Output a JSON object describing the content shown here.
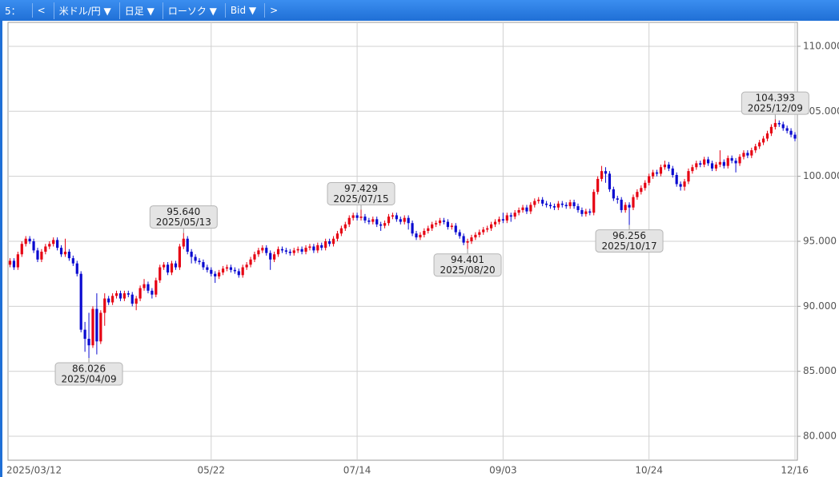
{
  "toolbar": {
    "period": "5：",
    "prev": "<",
    "symbol": "米ドル/円 ▼",
    "interval": "日足 ▼",
    "style": "ローソク ▼",
    "price": "Bid ▼",
    "next": ">"
  },
  "chart_data": {
    "type": "candlestick",
    "up_color": "#e60012",
    "down_color": "#0a0ad0",
    "grid": true,
    "ylim": [
      78.16,
      111.84
    ],
    "yticks": [
      {
        "value": 80,
        "label": "80.000"
      },
      {
        "value": 85,
        "label": "85.000"
      },
      {
        "value": 90,
        "label": "90.000"
      },
      {
        "value": 95,
        "label": "95.000"
      },
      {
        "value": 100,
        "label": "100.000"
      },
      {
        "value": 105,
        "label": "105.000"
      },
      {
        "value": 110,
        "label": "110.000"
      }
    ],
    "categories": [
      "2025/03/12",
      null,
      null,
      null,
      null,
      null,
      null,
      null,
      null,
      null,
      null,
      null,
      null,
      null,
      null,
      null,
      null,
      null,
      null,
      null,
      null,
      null,
      null,
      null,
      null,
      null,
      null,
      null,
      null,
      null,
      null,
      null,
      null,
      null,
      null,
      null,
      null,
      null,
      null,
      null,
      null,
      null,
      null,
      null,
      null,
      null,
      null,
      null,
      null,
      null,
      null,
      "05/22",
      null,
      null,
      null,
      null,
      null,
      null,
      null,
      null,
      null,
      null,
      null,
      null,
      null,
      null,
      null,
      null,
      null,
      null,
      null,
      null,
      null,
      null,
      null,
      null,
      null,
      null,
      null,
      null,
      null,
      null,
      null,
      null,
      null,
      null,
      null,
      null,
      "07/14",
      null,
      null,
      null,
      null,
      null,
      null,
      null,
      null,
      null,
      null,
      null,
      null,
      null,
      null,
      null,
      null,
      null,
      null,
      null,
      null,
      null,
      null,
      null,
      null,
      null,
      null,
      null,
      null,
      null,
      null,
      null,
      null,
      null,
      null,
      null,
      null,
      "09/03",
      null,
      null,
      null,
      null,
      null,
      null,
      null,
      null,
      null,
      null,
      null,
      null,
      null,
      null,
      null,
      null,
      null,
      null,
      null,
      null,
      null,
      null,
      null,
      null,
      null,
      null,
      null,
      null,
      null,
      null,
      null,
      null,
      null,
      null,
      null,
      null,
      "10/24",
      null,
      null,
      null,
      null,
      null,
      null,
      null,
      null,
      null,
      null,
      null,
      null,
      null,
      null,
      null,
      null,
      null,
      null,
      null,
      null,
      null,
      null,
      null,
      null,
      null,
      null,
      null,
      null,
      null,
      null,
      null,
      null,
      null,
      null,
      null,
      null,
      "12/16"
    ],
    "ohlc": [
      [
        93.2,
        93.7,
        93.0,
        93.5
      ],
      [
        93.5,
        93.7,
        92.8,
        93.0
      ],
      [
        93.0,
        94.2,
        92.8,
        94.0
      ],
      [
        94.0,
        95.0,
        93.8,
        94.8
      ],
      [
        94.8,
        95.4,
        94.6,
        95.2
      ],
      [
        95.2,
        95.4,
        94.8,
        95.0
      ],
      [
        95.0,
        95.2,
        94.1,
        94.3
      ],
      [
        94.3,
        94.5,
        93.4,
        93.6
      ],
      [
        93.6,
        94.4,
        93.4,
        94.2
      ],
      [
        94.2,
        94.8,
        94.0,
        94.6
      ],
      [
        94.6,
        95.0,
        94.4,
        94.8
      ],
      [
        94.8,
        95.3,
        94.6,
        95.1
      ],
      [
        95.1,
        95.3,
        94.3,
        94.5
      ],
      [
        94.5,
        94.7,
        93.8,
        94.0
      ],
      [
        94.0,
        95.2,
        93.8,
        94.2
      ],
      [
        94.2,
        94.4,
        93.5,
        93.7
      ],
      [
        93.7,
        93.9,
        93.1,
        93.3
      ],
      [
        93.3,
        93.5,
        92.3,
        92.5
      ],
      [
        92.5,
        92.7,
        88.0,
        88.2
      ],
      [
        88.2,
        88.8,
        86.5,
        87.5
      ],
      [
        87.5,
        89.5,
        86.026,
        87.0
      ],
      [
        87.0,
        90.0,
        86.8,
        89.8
      ],
      [
        89.8,
        91.0,
        86.3,
        87.3
      ],
      [
        87.3,
        89.7,
        87.1,
        89.5
      ],
      [
        89.5,
        91.0,
        88.5,
        90.6
      ],
      [
        90.6,
        90.8,
        90.1,
        90.3
      ],
      [
        90.3,
        91.0,
        90.1,
        90.8
      ],
      [
        90.8,
        91.2,
        90.6,
        91.0
      ],
      [
        91.0,
        91.2,
        90.4,
        90.6
      ],
      [
        90.6,
        91.2,
        90.4,
        91.0
      ],
      [
        91.0,
        91.2,
        90.7,
        90.9
      ],
      [
        90.9,
        91.1,
        90.0,
        90.2
      ],
      [
        90.2,
        90.8,
        89.7,
        90.6
      ],
      [
        90.6,
        91.6,
        90.4,
        91.4
      ],
      [
        91.4,
        92.1,
        91.2,
        91.7
      ],
      [
        91.7,
        91.9,
        91.0,
        91.2
      ],
      [
        91.2,
        91.4,
        90.6,
        90.9
      ],
      [
        90.9,
        92.2,
        90.7,
        92.0
      ],
      [
        92.0,
        93.2,
        91.8,
        93.0
      ],
      [
        93.0,
        93.4,
        92.8,
        93.2
      ],
      [
        93.2,
        93.4,
        92.4,
        92.6
      ],
      [
        92.6,
        93.5,
        92.4,
        93.3
      ],
      [
        93.3,
        93.5,
        92.8,
        93.0
      ],
      [
        93.0,
        94.8,
        92.8,
        94.6
      ],
      [
        94.6,
        95.64,
        94.4,
        95.2
      ],
      [
        95.2,
        95.4,
        94.0,
        94.2
      ],
      [
        94.2,
        94.4,
        93.3,
        93.8
      ],
      [
        93.8,
        94.0,
        93.3,
        93.5
      ],
      [
        93.5,
        93.7,
        93.2,
        93.4
      ],
      [
        93.4,
        93.6,
        92.8,
        93.0
      ],
      [
        93.0,
        93.2,
        92.6,
        92.8
      ],
      [
        92.8,
        93.0,
        92.3,
        92.5
      ],
      [
        92.5,
        92.7,
        91.8,
        92.3
      ],
      [
        92.3,
        92.8,
        92.1,
        92.6
      ],
      [
        92.6,
        93.1,
        92.4,
        92.9
      ],
      [
        92.9,
        93.2,
        92.7,
        93.0
      ],
      [
        93.0,
        93.2,
        92.6,
        92.8
      ],
      [
        92.8,
        93.0,
        92.5,
        92.7
      ],
      [
        92.7,
        92.9,
        92.2,
        92.4
      ],
      [
        92.4,
        93.2,
        92.2,
        93.0
      ],
      [
        93.0,
        93.4,
        92.8,
        93.2
      ],
      [
        93.2,
        93.8,
        93.0,
        93.6
      ],
      [
        93.6,
        94.2,
        93.4,
        94.0
      ],
      [
        94.0,
        94.5,
        93.8,
        94.3
      ],
      [
        94.3,
        94.7,
        94.1,
        94.5
      ],
      [
        94.5,
        94.7,
        93.9,
        94.1
      ],
      [
        94.1,
        94.3,
        92.8,
        93.6
      ],
      [
        93.6,
        94.2,
        93.4,
        94.0
      ],
      [
        94.0,
        94.6,
        93.8,
        94.4
      ],
      [
        94.4,
        94.6,
        94.1,
        94.3
      ],
      [
        94.3,
        94.5,
        94.0,
        94.2
      ],
      [
        94.2,
        94.4,
        93.9,
        94.1
      ],
      [
        94.1,
        94.5,
        93.9,
        94.3
      ],
      [
        94.3,
        94.6,
        94.1,
        94.4
      ],
      [
        94.4,
        94.6,
        94.0,
        94.2
      ],
      [
        94.2,
        94.7,
        94.0,
        94.5
      ],
      [
        94.5,
        94.8,
        94.3,
        94.6
      ],
      [
        94.6,
        94.8,
        94.1,
        94.3
      ],
      [
        94.3,
        94.9,
        94.1,
        94.7
      ],
      [
        94.7,
        94.9,
        94.3,
        94.5
      ],
      [
        94.5,
        95.2,
        94.3,
        95.0
      ],
      [
        95.0,
        95.2,
        94.6,
        94.8
      ],
      [
        94.8,
        95.4,
        94.6,
        95.2
      ],
      [
        95.2,
        95.8,
        95.0,
        95.6
      ],
      [
        95.6,
        96.2,
        95.4,
        96.0
      ],
      [
        96.0,
        96.5,
        95.8,
        96.3
      ],
      [
        96.3,
        97.0,
        96.1,
        96.8
      ],
      [
        96.8,
        97.2,
        96.6,
        97.0
      ],
      [
        97.0,
        97.2,
        96.6,
        96.8
      ],
      [
        96.8,
        97.429,
        96.6,
        96.9
      ],
      [
        96.9,
        97.1,
        96.4,
        96.6
      ],
      [
        96.6,
        96.8,
        96.3,
        96.5
      ],
      [
        96.5,
        96.9,
        96.3,
        96.7
      ],
      [
        96.7,
        96.9,
        96.1,
        96.3
      ],
      [
        96.3,
        96.5,
        95.8,
        96.2
      ],
      [
        96.2,
        96.6,
        96.0,
        96.4
      ],
      [
        96.4,
        97.1,
        96.2,
        96.9
      ],
      [
        96.9,
        97.2,
        96.7,
        97.0
      ],
      [
        97.0,
        97.2,
        96.5,
        96.7
      ],
      [
        96.7,
        96.9,
        96.3,
        96.5
      ],
      [
        96.5,
        97.0,
        96.3,
        96.8
      ],
      [
        96.8,
        97.0,
        95.9,
        96.4
      ],
      [
        96.4,
        96.6,
        95.4,
        95.6
      ],
      [
        95.6,
        95.8,
        95.1,
        95.3
      ],
      [
        95.3,
        95.7,
        95.1,
        95.5
      ],
      [
        95.5,
        96.0,
        95.3,
        95.8
      ],
      [
        95.8,
        96.2,
        95.6,
        96.0
      ],
      [
        96.0,
        96.5,
        95.8,
        96.3
      ],
      [
        96.3,
        96.6,
        96.1,
        96.4
      ],
      [
        96.4,
        96.8,
        96.2,
        96.6
      ],
      [
        96.6,
        96.8,
        96.3,
        96.5
      ],
      [
        96.5,
        96.7,
        95.9,
        96.1
      ],
      [
        96.1,
        96.4,
        95.9,
        96.2
      ],
      [
        96.2,
        96.4,
        95.5,
        95.7
      ],
      [
        95.7,
        95.9,
        95.2,
        95.4
      ],
      [
        95.4,
        95.6,
        94.7,
        94.9
      ],
      [
        94.9,
        95.2,
        94.401,
        95.0
      ],
      [
        95.0,
        95.5,
        94.8,
        95.3
      ],
      [
        95.3,
        95.7,
        95.1,
        95.5
      ],
      [
        95.5,
        95.9,
        95.3,
        95.7
      ],
      [
        95.7,
        96.1,
        95.5,
        95.9
      ],
      [
        95.9,
        96.2,
        95.7,
        96.0
      ],
      [
        96.0,
        96.5,
        95.8,
        96.3
      ],
      [
        96.3,
        96.7,
        96.1,
        96.5
      ],
      [
        96.5,
        96.9,
        96.3,
        96.7
      ],
      [
        96.7,
        97.2,
        96.4,
        96.6
      ],
      [
        96.6,
        97.2,
        96.4,
        97.0
      ],
      [
        97.0,
        97.2,
        96.5,
        96.9
      ],
      [
        96.9,
        97.4,
        96.7,
        97.2
      ],
      [
        97.2,
        97.6,
        97.0,
        97.4
      ],
      [
        97.4,
        97.8,
        97.2,
        97.6
      ],
      [
        97.6,
        97.8,
        97.1,
        97.3
      ],
      [
        97.3,
        98.0,
        97.1,
        97.8
      ],
      [
        97.8,
        98.3,
        97.6,
        98.1
      ],
      [
        98.1,
        98.4,
        97.9,
        98.2
      ],
      [
        98.2,
        98.4,
        97.7,
        97.9
      ],
      [
        97.9,
        98.1,
        97.6,
        97.8
      ],
      [
        97.8,
        98.0,
        97.5,
        97.7
      ],
      [
        97.7,
        97.9,
        97.4,
        97.6
      ],
      [
        97.6,
        98.1,
        97.4,
        97.9
      ],
      [
        97.9,
        98.1,
        97.6,
        97.8
      ],
      [
        97.8,
        98.0,
        97.5,
        97.7
      ],
      [
        97.7,
        98.2,
        97.5,
        98.0
      ],
      [
        98.0,
        98.2,
        97.5,
        97.7
      ],
      [
        97.7,
        97.9,
        97.2,
        97.4
      ],
      [
        97.4,
        97.6,
        96.9,
        97.1
      ],
      [
        97.1,
        97.5,
        96.9,
        97.3
      ],
      [
        97.3,
        97.5,
        97.0,
        97.2
      ],
      [
        97.2,
        99.0,
        97.0,
        98.8
      ],
      [
        98.8,
        100.0,
        98.6,
        99.8
      ],
      [
        99.8,
        100.8,
        99.6,
        100.4
      ],
      [
        100.4,
        100.7,
        99.5,
        100.2
      ],
      [
        100.2,
        100.4,
        98.8,
        99.0
      ],
      [
        99.0,
        99.2,
        98.1,
        98.3
      ],
      [
        98.3,
        98.5,
        97.9,
        98.2
      ],
      [
        98.2,
        98.4,
        97.2,
        97.4
      ],
      [
        97.4,
        98.0,
        97.2,
        97.8
      ],
      [
        97.8,
        98.0,
        96.256,
        97.6
      ],
      [
        97.6,
        98.6,
        97.4,
        98.4
      ],
      [
        98.4,
        99.0,
        98.2,
        98.8
      ],
      [
        98.8,
        99.3,
        98.6,
        99.1
      ],
      [
        99.1,
        99.7,
        98.9,
        99.5
      ],
      [
        99.5,
        100.2,
        99.3,
        100.0
      ],
      [
        100.0,
        100.5,
        99.8,
        100.3
      ],
      [
        100.3,
        100.5,
        100.0,
        100.2
      ],
      [
        100.2,
        100.9,
        100.0,
        100.7
      ],
      [
        100.7,
        101.2,
        100.5,
        100.9
      ],
      [
        100.9,
        101.1,
        100.4,
        100.6
      ],
      [
        100.6,
        100.8,
        99.9,
        100.1
      ],
      [
        100.1,
        100.3,
        99.2,
        99.4
      ],
      [
        99.4,
        99.6,
        98.9,
        99.2
      ],
      [
        99.2,
        99.8,
        98.9,
        99.6
      ],
      [
        99.6,
        100.6,
        99.4,
        100.4
      ],
      [
        100.4,
        100.9,
        100.2,
        100.7
      ],
      [
        100.7,
        101.2,
        100.5,
        101.0
      ],
      [
        101.0,
        101.2,
        100.7,
        100.9
      ],
      [
        100.9,
        101.5,
        100.7,
        101.3
      ],
      [
        101.3,
        101.5,
        100.8,
        101.0
      ],
      [
        101.0,
        101.2,
        100.4,
        100.6
      ],
      [
        100.6,
        101.1,
        100.4,
        100.9
      ],
      [
        100.9,
        102.0,
        100.7,
        101.1
      ],
      [
        101.1,
        101.3,
        100.6,
        100.8
      ],
      [
        100.8,
        101.6,
        100.6,
        101.4
      ],
      [
        101.4,
        101.6,
        101.0,
        101.2
      ],
      [
        101.2,
        101.4,
        100.3,
        101.0
      ],
      [
        101.0,
        101.7,
        100.8,
        101.5
      ],
      [
        101.5,
        102.0,
        101.3,
        101.8
      ],
      [
        101.8,
        102.0,
        101.4,
        101.6
      ],
      [
        101.6,
        102.2,
        101.4,
        102.0
      ],
      [
        102.0,
        102.5,
        101.8,
        102.3
      ],
      [
        102.3,
        102.8,
        102.1,
        102.6
      ],
      [
        102.6,
        103.1,
        102.4,
        102.9
      ],
      [
        102.9,
        103.5,
        102.7,
        103.3
      ],
      [
        103.3,
        104.0,
        103.1,
        103.8
      ],
      [
        103.8,
        104.393,
        103.6,
        104.1
      ],
      [
        104.1,
        104.3,
        103.8,
        104.0
      ],
      [
        104.0,
        104.2,
        103.5,
        103.7
      ],
      [
        103.7,
        103.9,
        103.3,
        103.5
      ],
      [
        103.5,
        103.7,
        103.0,
        103.2
      ],
      [
        103.2,
        103.4,
        102.7,
        102.9
      ]
    ],
    "annotations": [
      {
        "kind": "low",
        "value": 86.026,
        "label": "86.026",
        "date": "2025/04/09"
      },
      {
        "kind": "high",
        "value": 95.64,
        "label": "95.640",
        "date": "2025/05/13"
      },
      {
        "kind": "high",
        "value": 97.429,
        "label": "97.429",
        "date": "2025/07/15"
      },
      {
        "kind": "low",
        "value": 94.401,
        "label": "94.401",
        "date": "2025/08/20"
      },
      {
        "kind": "low",
        "value": 96.256,
        "label": "96.256",
        "date": "2025/10/17"
      },
      {
        "kind": "high",
        "value": 104.393,
        "label": "104.393",
        "date": "2025/12/09"
      }
    ]
  }
}
